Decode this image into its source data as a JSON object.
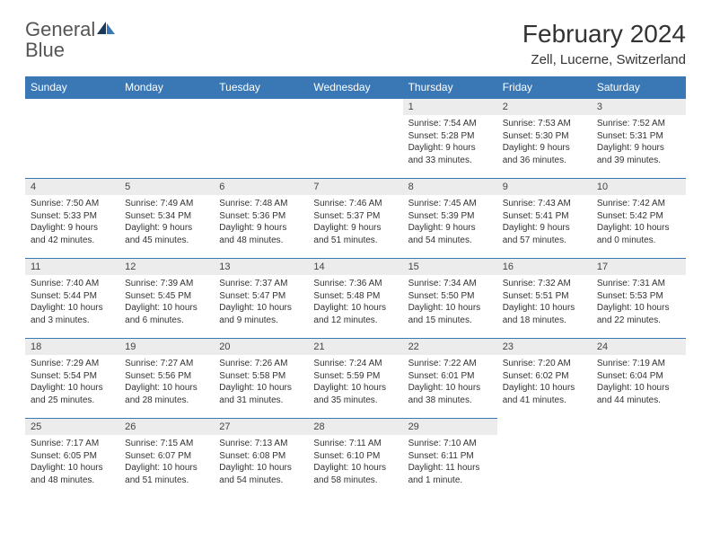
{
  "logo": {
    "word1": "General",
    "word2": "Blue"
  },
  "title": "February 2024",
  "location": "Zell, Lucerne, Switzerland",
  "weekdays": [
    "Sunday",
    "Monday",
    "Tuesday",
    "Wednesday",
    "Thursday",
    "Friday",
    "Saturday"
  ],
  "colors": {
    "header_bg": "#3a78b5",
    "header_text": "#ffffff",
    "daynum_bg": "#ececec",
    "border": "#3a78b5",
    "logo_blue": "#3a78b5",
    "logo_dark": "#1a3a5c",
    "text": "#333333"
  },
  "weeks": [
    [
      null,
      null,
      null,
      null,
      {
        "n": "1",
        "sr": "Sunrise: 7:54 AM",
        "ss": "Sunset: 5:28 PM",
        "d1": "Daylight: 9 hours",
        "d2": "and 33 minutes."
      },
      {
        "n": "2",
        "sr": "Sunrise: 7:53 AM",
        "ss": "Sunset: 5:30 PM",
        "d1": "Daylight: 9 hours",
        "d2": "and 36 minutes."
      },
      {
        "n": "3",
        "sr": "Sunrise: 7:52 AM",
        "ss": "Sunset: 5:31 PM",
        "d1": "Daylight: 9 hours",
        "d2": "and 39 minutes."
      }
    ],
    [
      {
        "n": "4",
        "sr": "Sunrise: 7:50 AM",
        "ss": "Sunset: 5:33 PM",
        "d1": "Daylight: 9 hours",
        "d2": "and 42 minutes."
      },
      {
        "n": "5",
        "sr": "Sunrise: 7:49 AM",
        "ss": "Sunset: 5:34 PM",
        "d1": "Daylight: 9 hours",
        "d2": "and 45 minutes."
      },
      {
        "n": "6",
        "sr": "Sunrise: 7:48 AM",
        "ss": "Sunset: 5:36 PM",
        "d1": "Daylight: 9 hours",
        "d2": "and 48 minutes."
      },
      {
        "n": "7",
        "sr": "Sunrise: 7:46 AM",
        "ss": "Sunset: 5:37 PM",
        "d1": "Daylight: 9 hours",
        "d2": "and 51 minutes."
      },
      {
        "n": "8",
        "sr": "Sunrise: 7:45 AM",
        "ss": "Sunset: 5:39 PM",
        "d1": "Daylight: 9 hours",
        "d2": "and 54 minutes."
      },
      {
        "n": "9",
        "sr": "Sunrise: 7:43 AM",
        "ss": "Sunset: 5:41 PM",
        "d1": "Daylight: 9 hours",
        "d2": "and 57 minutes."
      },
      {
        "n": "10",
        "sr": "Sunrise: 7:42 AM",
        "ss": "Sunset: 5:42 PM",
        "d1": "Daylight: 10 hours",
        "d2": "and 0 minutes."
      }
    ],
    [
      {
        "n": "11",
        "sr": "Sunrise: 7:40 AM",
        "ss": "Sunset: 5:44 PM",
        "d1": "Daylight: 10 hours",
        "d2": "and 3 minutes."
      },
      {
        "n": "12",
        "sr": "Sunrise: 7:39 AM",
        "ss": "Sunset: 5:45 PM",
        "d1": "Daylight: 10 hours",
        "d2": "and 6 minutes."
      },
      {
        "n": "13",
        "sr": "Sunrise: 7:37 AM",
        "ss": "Sunset: 5:47 PM",
        "d1": "Daylight: 10 hours",
        "d2": "and 9 minutes."
      },
      {
        "n": "14",
        "sr": "Sunrise: 7:36 AM",
        "ss": "Sunset: 5:48 PM",
        "d1": "Daylight: 10 hours",
        "d2": "and 12 minutes."
      },
      {
        "n": "15",
        "sr": "Sunrise: 7:34 AM",
        "ss": "Sunset: 5:50 PM",
        "d1": "Daylight: 10 hours",
        "d2": "and 15 minutes."
      },
      {
        "n": "16",
        "sr": "Sunrise: 7:32 AM",
        "ss": "Sunset: 5:51 PM",
        "d1": "Daylight: 10 hours",
        "d2": "and 18 minutes."
      },
      {
        "n": "17",
        "sr": "Sunrise: 7:31 AM",
        "ss": "Sunset: 5:53 PM",
        "d1": "Daylight: 10 hours",
        "d2": "and 22 minutes."
      }
    ],
    [
      {
        "n": "18",
        "sr": "Sunrise: 7:29 AM",
        "ss": "Sunset: 5:54 PM",
        "d1": "Daylight: 10 hours",
        "d2": "and 25 minutes."
      },
      {
        "n": "19",
        "sr": "Sunrise: 7:27 AM",
        "ss": "Sunset: 5:56 PM",
        "d1": "Daylight: 10 hours",
        "d2": "and 28 minutes."
      },
      {
        "n": "20",
        "sr": "Sunrise: 7:26 AM",
        "ss": "Sunset: 5:58 PM",
        "d1": "Daylight: 10 hours",
        "d2": "and 31 minutes."
      },
      {
        "n": "21",
        "sr": "Sunrise: 7:24 AM",
        "ss": "Sunset: 5:59 PM",
        "d1": "Daylight: 10 hours",
        "d2": "and 35 minutes."
      },
      {
        "n": "22",
        "sr": "Sunrise: 7:22 AM",
        "ss": "Sunset: 6:01 PM",
        "d1": "Daylight: 10 hours",
        "d2": "and 38 minutes."
      },
      {
        "n": "23",
        "sr": "Sunrise: 7:20 AM",
        "ss": "Sunset: 6:02 PM",
        "d1": "Daylight: 10 hours",
        "d2": "and 41 minutes."
      },
      {
        "n": "24",
        "sr": "Sunrise: 7:19 AM",
        "ss": "Sunset: 6:04 PM",
        "d1": "Daylight: 10 hours",
        "d2": "and 44 minutes."
      }
    ],
    [
      {
        "n": "25",
        "sr": "Sunrise: 7:17 AM",
        "ss": "Sunset: 6:05 PM",
        "d1": "Daylight: 10 hours",
        "d2": "and 48 minutes."
      },
      {
        "n": "26",
        "sr": "Sunrise: 7:15 AM",
        "ss": "Sunset: 6:07 PM",
        "d1": "Daylight: 10 hours",
        "d2": "and 51 minutes."
      },
      {
        "n": "27",
        "sr": "Sunrise: 7:13 AM",
        "ss": "Sunset: 6:08 PM",
        "d1": "Daylight: 10 hours",
        "d2": "and 54 minutes."
      },
      {
        "n": "28",
        "sr": "Sunrise: 7:11 AM",
        "ss": "Sunset: 6:10 PM",
        "d1": "Daylight: 10 hours",
        "d2": "and 58 minutes."
      },
      {
        "n": "29",
        "sr": "Sunrise: 7:10 AM",
        "ss": "Sunset: 6:11 PM",
        "d1": "Daylight: 11 hours",
        "d2": "and 1 minute."
      },
      null,
      null
    ]
  ]
}
